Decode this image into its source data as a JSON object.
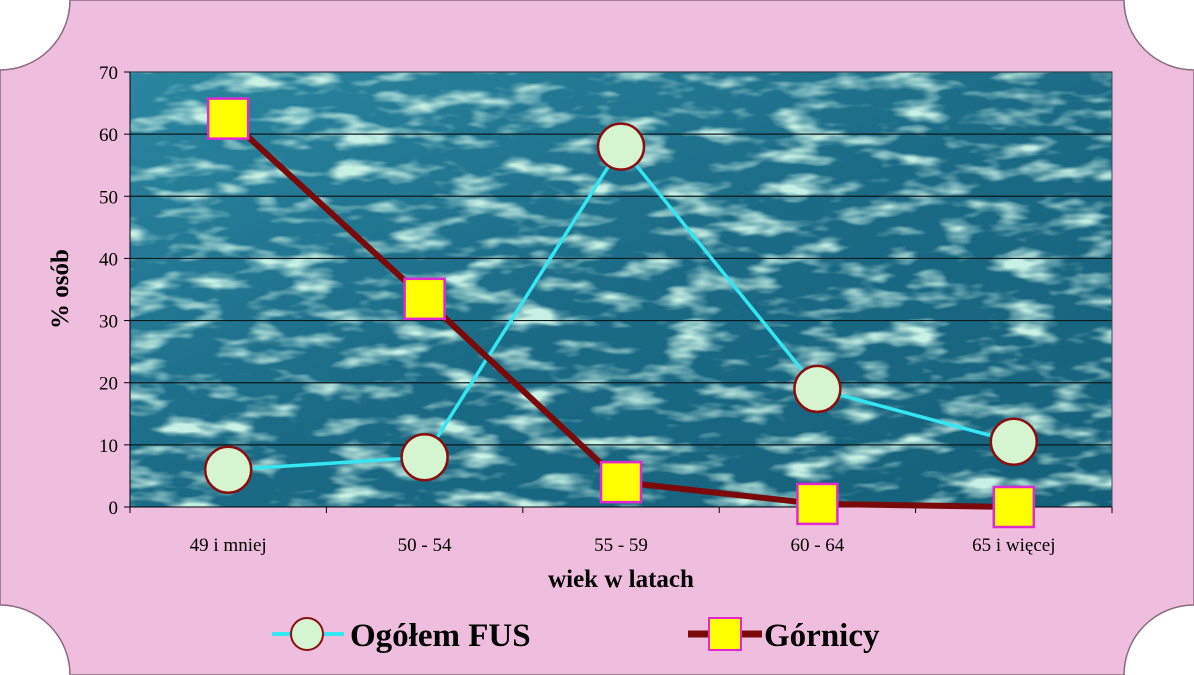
{
  "chart_data": {
    "type": "line",
    "categories": [
      "49 i mniej",
      "50 - 54",
      "55 - 59",
      "60 - 64",
      "65  i więcej"
    ],
    "series": [
      {
        "name": "Ogółem FUS",
        "values": [
          6,
          8,
          58,
          19,
          10.5
        ],
        "color": "#33e6f2",
        "marker": "circle",
        "marker_fill": "#d4f5cf",
        "marker_stroke": "#8b0e0e"
      },
      {
        "name": "Górnicy",
        "values": [
          62.5,
          33.5,
          4,
          0.5,
          0
        ],
        "color": "#7a0a0a",
        "marker": "square",
        "marker_fill": "#ffff00",
        "marker_stroke": "#e02ad0"
      }
    ],
    "xlabel": "wiek w latach",
    "ylabel": "% osób",
    "ylim": [
      0,
      70
    ],
    "yticks": [
      "0",
      "10",
      "20",
      "30",
      "40",
      "50",
      "60",
      "70"
    ],
    "grid": true,
    "legend": "bottom",
    "frame_color": "#efbede",
    "plot_color": "#1e6f86"
  }
}
